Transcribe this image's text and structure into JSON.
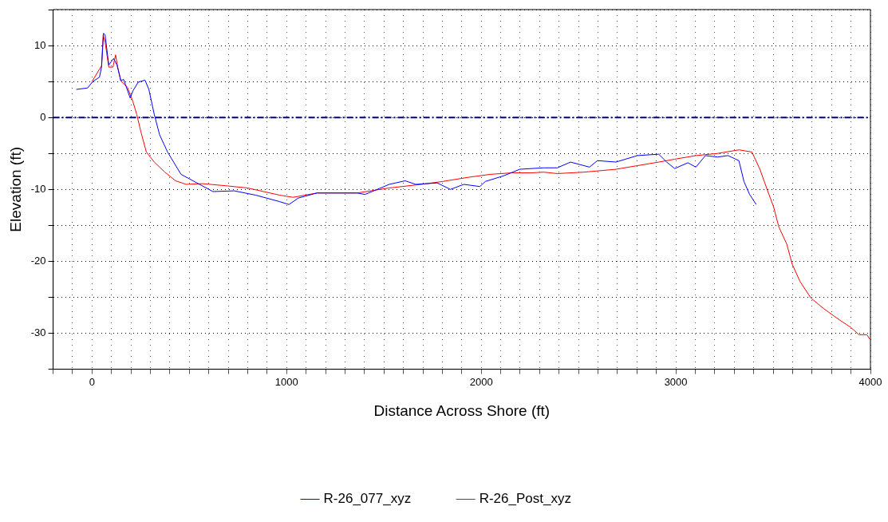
{
  "chart_data": {
    "type": "line",
    "xlabel": "Distance Across Shore (ft)",
    "ylabel": "Elevation (ft)",
    "xlim": [
      -200,
      4000
    ],
    "xticks": [
      {
        "value": -200,
        "label": null
      },
      {
        "value": -100,
        "label": null
      },
      0,
      {
        "value": 100,
        "label": null
      },
      {
        "value": 200,
        "label": null
      },
      {
        "value": 300,
        "label": null
      },
      {
        "value": 400,
        "label": null
      },
      {
        "value": 500,
        "label": null
      },
      {
        "value": 600,
        "label": null
      },
      {
        "value": 700,
        "label": null
      },
      {
        "value": 800,
        "label": null
      },
      {
        "value": 900,
        "label": null
      },
      1000,
      {
        "value": 1100,
        "label": null
      },
      {
        "value": 1200,
        "label": null
      },
      {
        "value": 1300,
        "label": null
      },
      {
        "value": 1400,
        "label": null
      },
      {
        "value": 1500,
        "label": null
      },
      {
        "value": 1600,
        "label": null
      },
      {
        "value": 1700,
        "label": null
      },
      {
        "value": 1800,
        "label": null
      },
      {
        "value": 1900,
        "label": null
      },
      2000,
      {
        "value": 2100,
        "label": null
      },
      {
        "value": 2200,
        "label": null
      },
      {
        "value": 2300,
        "label": null
      },
      {
        "value": 2400,
        "label": null
      },
      {
        "value": 2500,
        "label": null
      },
      {
        "value": 2600,
        "label": null
      },
      {
        "value": 2700,
        "label": null
      },
      {
        "value": 2800,
        "label": null
      },
      {
        "value": 2900,
        "label": null
      },
      3000,
      {
        "value": 3100,
        "label": null
      },
      {
        "value": 3200,
        "label": null
      },
      {
        "value": 3300,
        "label": null
      },
      {
        "value": 3400,
        "label": null
      },
      {
        "value": 3500,
        "label": null
      },
      {
        "value": 3600,
        "label": null
      },
      {
        "value": 3700,
        "label": null
      },
      {
        "value": 3800,
        "label": null
      },
      {
        "value": 3900,
        "label": null
      },
      4000
    ],
    "ylim": [
      -35,
      15
    ],
    "yticks": [
      {
        "value": -35,
        "label": null
      },
      -30,
      {
        "value": -25,
        "label": null
      },
      -20,
      {
        "value": -15,
        "label": null
      },
      -10,
      {
        "value": -5,
        "label": null
      },
      0,
      {
        "value": 5,
        "label": null
      },
      10,
      {
        "value": 15,
        "label": null
      }
    ],
    "grid": true,
    "legend": "bottom",
    "marker": "none",
    "line_style": "solid",
    "ref_lines": [
      {
        "axis": "y",
        "value": 0,
        "color": "#000080",
        "line_style": "dashdot"
      }
    ],
    "series": [
      {
        "name": "R-26_Post_xyz",
        "color": "#ff0000",
        "x": [
          0,
          49,
          57,
          67,
          86,
          107,
          121,
          132,
          148,
          182,
          210,
          230,
          251,
          279,
          320,
          374,
          429,
          484,
          566,
          690,
          799,
          964,
          1033,
          1156,
          1362,
          1527,
          1691,
          1801,
          1938,
          2048,
          2156,
          2254,
          2321,
          2391,
          2528,
          2692,
          2802,
          2912,
          2994,
          3103,
          3214,
          3324,
          3391,
          3432,
          3473,
          3502,
          3529,
          3570,
          3598,
          3638,
          3694,
          3761,
          3844,
          3900,
          3941,
          3982,
          3996
        ],
        "values": [
          5.0,
          7.2,
          11.4,
          10.5,
          7.0,
          7.0,
          8.7,
          7.0,
          5.1,
          4.2,
          2.2,
          0.4,
          -2.0,
          -4.8,
          -6.2,
          -7.6,
          -8.8,
          -9.3,
          -9.2,
          -9.5,
          -9.8,
          -10.8,
          -11.1,
          -10.5,
          -10.5,
          -9.8,
          -9.3,
          -8.9,
          -8.3,
          -7.9,
          -7.7,
          -7.7,
          -7.6,
          -7.8,
          -7.6,
          -7.2,
          -6.7,
          -6.2,
          -5.8,
          -5.3,
          -5.0,
          -4.5,
          -4.8,
          -7.2,
          -10.3,
          -12.4,
          -15.2,
          -17.6,
          -20.4,
          -22.8,
          -25.1,
          -26.6,
          -28.2,
          -29.2,
          -30.2,
          -30.2,
          -30.8
        ]
      },
      {
        "name": "R-26_077_xyz",
        "color": "#0000ff",
        "x": [
          -81,
          -23,
          4,
          38,
          49,
          59,
          67,
          86,
          111,
          128,
          148,
          162,
          196,
          210,
          237,
          272,
          292,
          320,
          347,
          388,
          457,
          539,
          621,
          731,
          841,
          964,
          1012,
          1060,
          1156,
          1362,
          1403,
          1527,
          1609,
          1663,
          1774,
          1842,
          1910,
          1993,
          2021,
          2116,
          2198,
          2321,
          2391,
          2459,
          2556,
          2597,
          2692,
          2802,
          2912,
          2953,
          2994,
          3062,
          3103,
          3152,
          3214,
          3268,
          3324,
          3350,
          3379,
          3413
        ],
        "values": [
          3.9,
          4.1,
          5.0,
          5.6,
          7.0,
          11.7,
          11.5,
          7.3,
          8.2,
          7.3,
          5.1,
          5.3,
          2.7,
          3.7,
          4.9,
          5.2,
          3.9,
          0.4,
          -2.4,
          -4.8,
          -7.9,
          -9.1,
          -10.3,
          -10.2,
          -10.8,
          -11.7,
          -12.1,
          -11.2,
          -10.5,
          -10.5,
          -10.7,
          -9.3,
          -8.8,
          -9.3,
          -9.1,
          -10.0,
          -9.3,
          -9.6,
          -8.9,
          -8.1,
          -7.2,
          -7.0,
          -7.0,
          -6.2,
          -6.9,
          -6.0,
          -6.2,
          -5.3,
          -5.1,
          -6.2,
          -7.1,
          -6.3,
          -6.9,
          -5.3,
          -5.5,
          -5.3,
          -6.0,
          -8.9,
          -10.7,
          -12.1
        ]
      }
    ]
  }
}
